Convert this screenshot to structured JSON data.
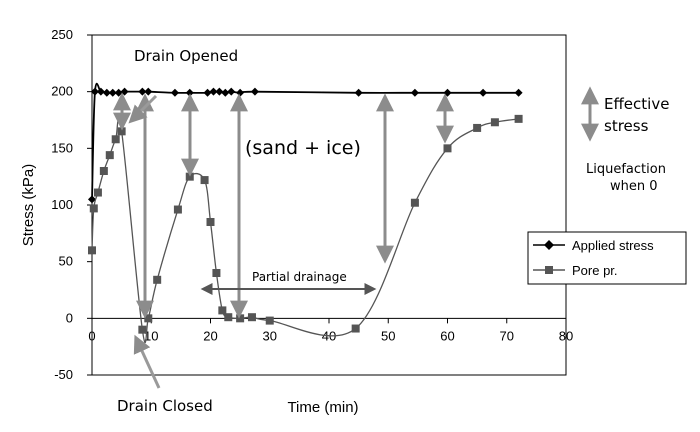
{
  "chart_data": {
    "type": "line",
    "title": "",
    "xlabel": "Time (min)",
    "ylabel": "Stress (kPa)",
    "xlim": [
      0,
      80
    ],
    "ylim": [
      -50,
      250
    ],
    "x_ticks": [
      "0",
      "10",
      "20",
      "30",
      "40",
      "50",
      "60",
      "70",
      "80"
    ],
    "y_ticks": [
      "250",
      "200",
      "150",
      "100",
      "50",
      "0",
      "-50"
    ],
    "grid": false,
    "legend_position": "right",
    "series": [
      {
        "name": "Applied stress",
        "marker": "diamond",
        "color": "#000000",
        "points": [
          [
            0,
            105
          ],
          [
            0.5,
            200
          ],
          [
            1.5,
            200
          ],
          [
            2.5,
            199
          ],
          [
            3.5,
            199
          ],
          [
            4.5,
            199
          ],
          [
            5.5,
            200
          ],
          [
            8.5,
            200
          ],
          [
            9.5,
            200
          ],
          [
            14,
            199
          ],
          [
            16.5,
            199
          ],
          [
            19.5,
            199
          ],
          [
            20.5,
            200
          ],
          [
            21.5,
            200
          ],
          [
            22.5,
            199
          ],
          [
            23.5,
            200
          ],
          [
            25,
            199
          ],
          [
            27.5,
            200
          ],
          [
            45,
            199
          ],
          [
            54.5,
            199
          ],
          [
            60,
            199
          ],
          [
            66,
            199
          ],
          [
            72,
            199
          ]
        ]
      },
      {
        "name": "Pore pr.",
        "marker": "square",
        "color": "#555555",
        "points": [
          [
            0,
            60
          ],
          [
            0.3,
            97
          ],
          [
            1,
            111
          ],
          [
            2,
            130
          ],
          [
            3,
            144
          ],
          [
            4,
            158
          ],
          [
            5,
            165
          ],
          [
            8.5,
            -10
          ],
          [
            9.5,
            0
          ],
          [
            11,
            34
          ],
          [
            14.5,
            96
          ],
          [
            16.5,
            125
          ],
          [
            19,
            122
          ],
          [
            20,
            85
          ],
          [
            21,
            40
          ],
          [
            22,
            7
          ],
          [
            23,
            1
          ],
          [
            25,
            0
          ],
          [
            27,
            1
          ],
          [
            30,
            -2
          ],
          [
            44.5,
            -9
          ],
          [
            54.5,
            102
          ],
          [
            60,
            150
          ],
          [
            65,
            168
          ],
          [
            68,
            173
          ],
          [
            72,
            176
          ]
        ]
      }
    ],
    "annotations": {
      "drain_opened": "Drain Opened",
      "drain_closed": "Drain Closed",
      "sand_ice": "(sand + ice)",
      "partial_drainage": "Partial drainage",
      "effective_stress_line1": "Effective",
      "effective_stress_line2": "stress",
      "liquefaction_line1": "Liquefaction",
      "liquefaction_line2": "when 0"
    }
  }
}
